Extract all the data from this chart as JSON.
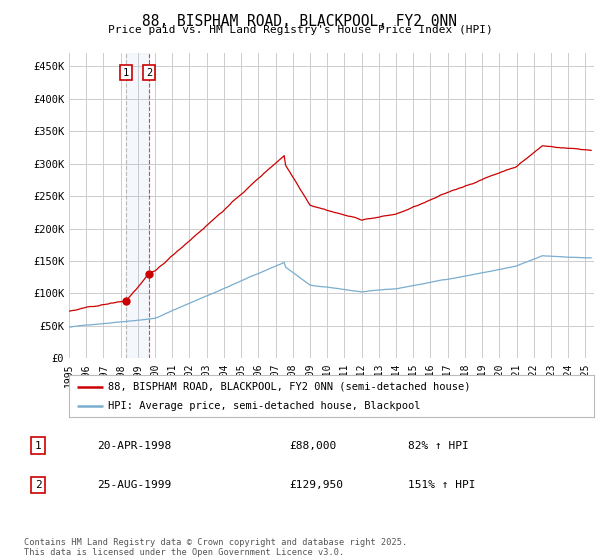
{
  "title": "88, BISPHAM ROAD, BLACKPOOL, FY2 0NN",
  "subtitle": "Price paid vs. HM Land Registry's House Price Index (HPI)",
  "legend_line1": "88, BISPHAM ROAD, BLACKPOOL, FY2 0NN (semi-detached house)",
  "legend_line2": "HPI: Average price, semi-detached house, Blackpool",
  "sale1_date": "20-APR-1998",
  "sale1_price": "£88,000",
  "sale1_hpi": "82% ↑ HPI",
  "sale1_x": 1998.3,
  "sale1_y": 88000,
  "sale2_date": "25-AUG-1999",
  "sale2_price": "£129,950",
  "sale2_hpi": "151% ↑ HPI",
  "sale2_x": 1999.65,
  "sale2_y": 129950,
  "footnote": "Contains HM Land Registry data © Crown copyright and database right 2025.\nThis data is licensed under the Open Government Licence v3.0.",
  "line_color_red": "#cc0000",
  "line_color_blue": "#7aadcf",
  "bg_color": "#ffffff",
  "grid_color": "#cccccc",
  "ylim": [
    0,
    470000
  ],
  "yticks": [
    0,
    50000,
    100000,
    150000,
    200000,
    250000,
    300000,
    350000,
    400000,
    450000
  ],
  "ylabels": [
    "£0",
    "£50K",
    "£100K",
    "£150K",
    "£200K",
    "£250K",
    "£300K",
    "£350K",
    "£400K",
    "£450K"
  ],
  "xlim": [
    1995.0,
    2025.5
  ]
}
